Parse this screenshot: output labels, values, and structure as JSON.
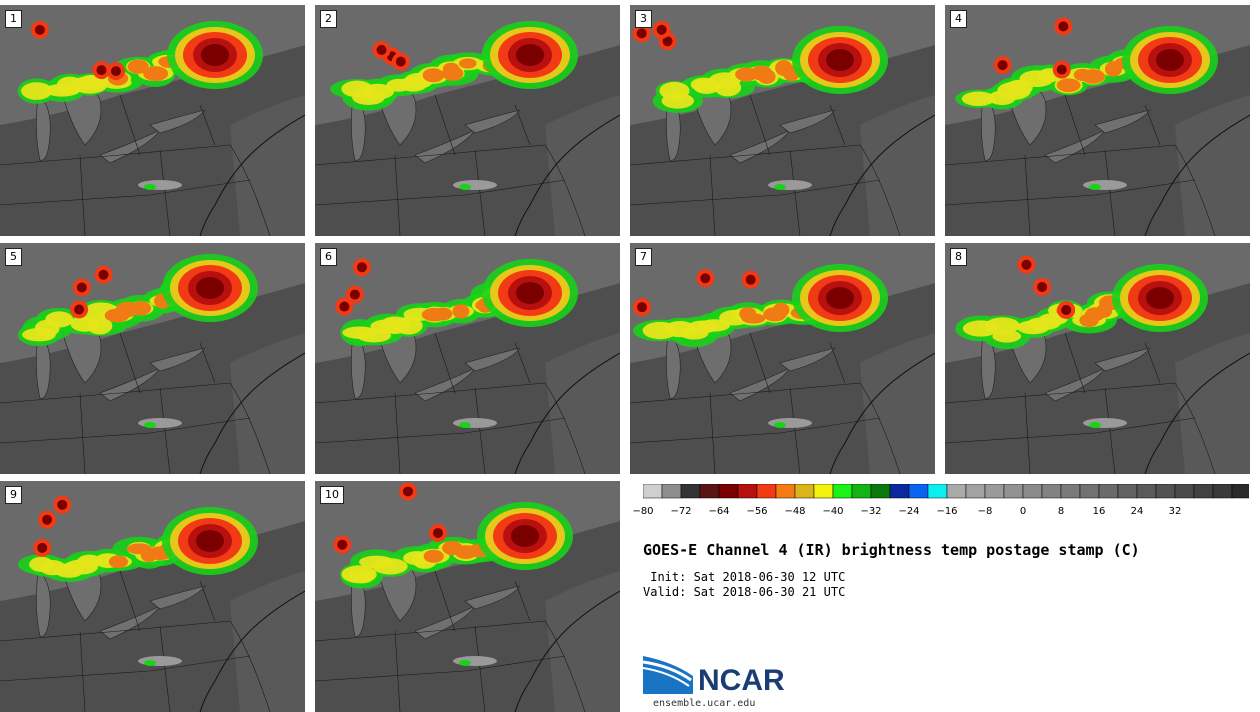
{
  "panels": [
    {
      "label": "1"
    },
    {
      "label": "2"
    },
    {
      "label": "3"
    },
    {
      "label": "4"
    },
    {
      "label": "5"
    },
    {
      "label": "6"
    },
    {
      "label": "7"
    },
    {
      "label": "8"
    },
    {
      "label": "9"
    },
    {
      "label": "10"
    }
  ],
  "colorbar": {
    "colors": [
      "#cfcfcf",
      "#8e8e8e",
      "#333333",
      "#5a1414",
      "#7a0000",
      "#b80f0f",
      "#f23a14",
      "#f57a14",
      "#d9b41a",
      "#f2f20f",
      "#1af21a",
      "#14b414",
      "#0a780a",
      "#0a28a0",
      "#0a64f0",
      "#0af0f0",
      "#aaaaaa",
      "#a2a2a2",
      "#9a9a9a",
      "#929292",
      "#8a8a8a",
      "#828282",
      "#7a7a7a",
      "#727272",
      "#6a6a6a",
      "#626262",
      "#5a5a5a",
      "#525252",
      "#4a4a4a",
      "#424242",
      "#3a3a3a",
      "#2a2a2a"
    ],
    "tick_labels": [
      "−80",
      "−72",
      "−64",
      "−56",
      "−48",
      "−40",
      "−32",
      "−24",
      "−16",
      "−8",
      "0",
      "8",
      "16",
      "24",
      "32"
    ]
  },
  "title": "GOES-E Channel 4 (IR) brightness temp postage stamp (C)",
  "init": " Init: Sat 2018-06-30 12 UTC",
  "valid": "Valid: Sat 2018-06-30 21 UTC",
  "logo": {
    "text": "NCAR",
    "url": "ensemble.ucar.edu"
  }
}
